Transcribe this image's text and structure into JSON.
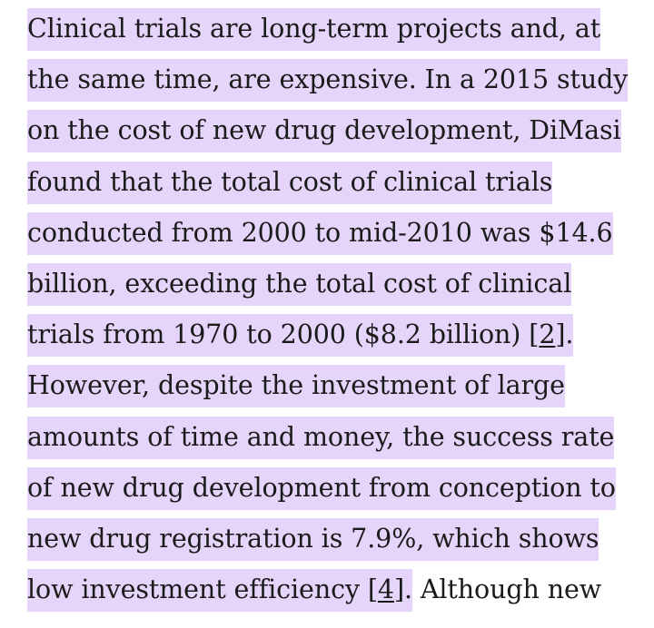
{
  "paragraph": {
    "lines": [
      {
        "highlighted": "Clinical trials are long-term projects and, at"
      },
      {
        "highlighted": "the same time, are expensive. In a 2015 study"
      },
      {
        "highlighted": "on the cost of new drug development, DiMasi"
      },
      {
        "highlighted": "found that the total cost of clinical trials"
      },
      {
        "highlighted": "conducted from 2000 to mid-2010 was $14.6"
      },
      {
        "highlighted": "billion, exceeding the total cost of clinical"
      },
      {
        "pre": "trials from 1970 to 2000 ($8.2 billion) [",
        "ref": "2",
        "post": "]."
      },
      {
        "highlighted": "However, despite the investment of large"
      },
      {
        "highlighted": "amounts of time and money, the success rate"
      },
      {
        "highlighted": "of new drug development from conception to"
      },
      {
        "highlighted": "new drug registration is 7.9%, which shows"
      },
      {
        "pre": "low investment efficiency [",
        "ref": "4",
        "post": "].",
        "plain": " Although new"
      }
    ]
  },
  "colors": {
    "highlight": "#e6d5fa",
    "text": "#1b1b1b"
  }
}
